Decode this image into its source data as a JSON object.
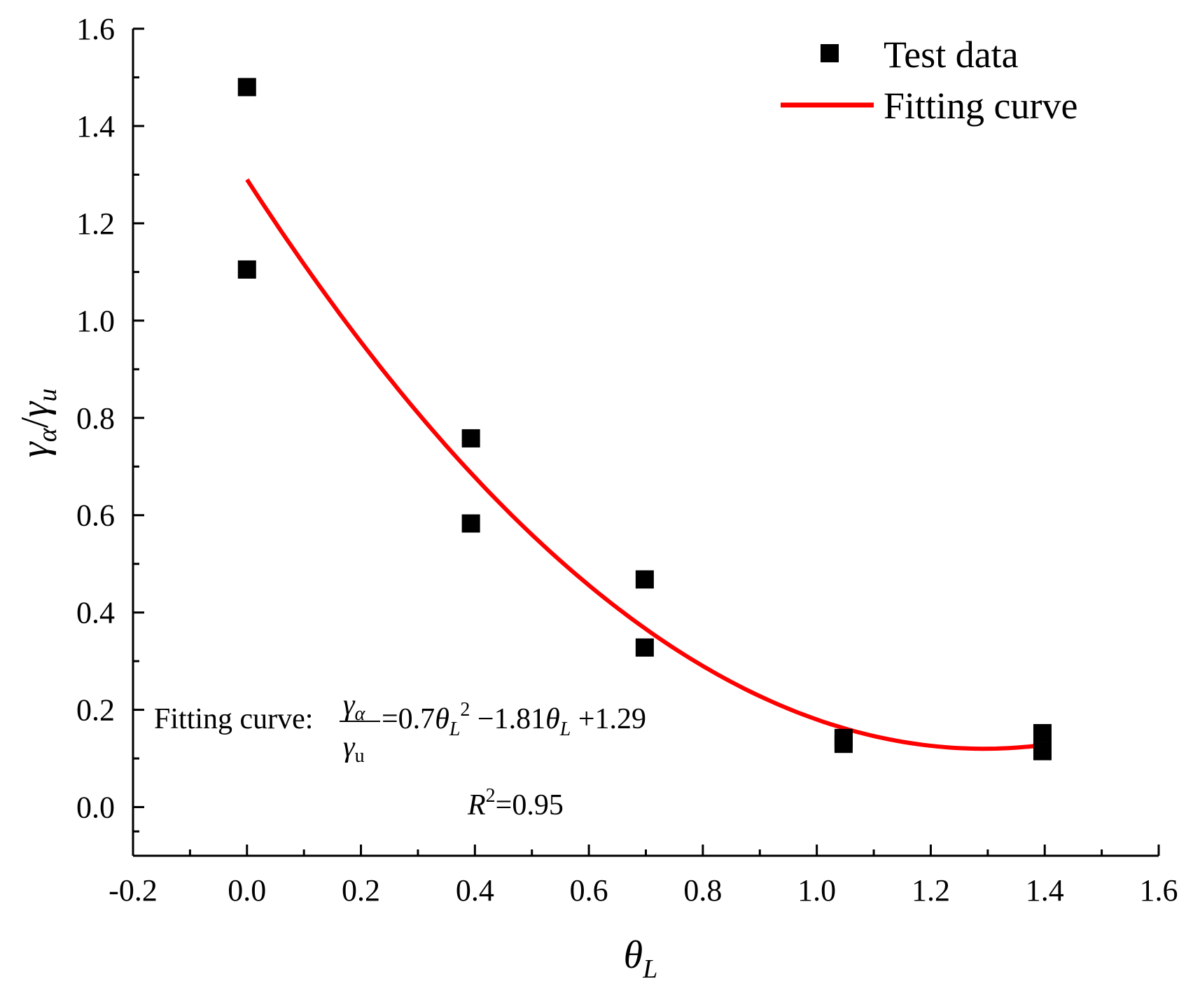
{
  "chart_data": {
    "type": "scatter",
    "xlabel": {
      "base": "θ",
      "sub": "L"
    },
    "ylabel": {
      "num": "γ",
      "num_sub": "α",
      "slash": "/",
      "den": "γ",
      "den_sub": "u"
    },
    "xlim": [
      -0.2,
      1.6
    ],
    "ylim": [
      -0.1,
      1.6
    ],
    "x_ticks": [
      -0.2,
      0.0,
      0.2,
      0.4,
      0.6,
      0.8,
      1.0,
      1.2,
      1.4,
      1.6
    ],
    "x_tick_labels": [
      "-0.2",
      "0.0",
      "0.2",
      "0.4",
      "0.6",
      "0.8",
      "1.0",
      "1.2",
      "1.4",
      "1.6"
    ],
    "y_ticks": [
      0.0,
      0.2,
      0.4,
      0.6,
      0.8,
      1.0,
      1.2,
      1.4,
      1.6
    ],
    "y_tick_labels": [
      "0.0",
      "0.2",
      "0.4",
      "0.6",
      "0.8",
      "1.0",
      "1.2",
      "1.4",
      "1.6"
    ],
    "grid": false,
    "legend_position": "top-right",
    "series": [
      {
        "name": "Test data",
        "kind": "scatter",
        "marker": "square",
        "color": "#000000",
        "points": [
          {
            "x": 0.0,
            "y": 1.48
          },
          {
            "x": 0.0,
            "y": 1.105
          },
          {
            "x": 0.393,
            "y": 0.758
          },
          {
            "x": 0.393,
            "y": 0.583
          },
          {
            "x": 0.698,
            "y": 0.468
          },
          {
            "x": 0.698,
            "y": 0.328
          },
          {
            "x": 1.047,
            "y": 0.142
          },
          {
            "x": 1.047,
            "y": 0.13
          },
          {
            "x": 1.396,
            "y": 0.152
          },
          {
            "x": 1.396,
            "y": 0.115
          }
        ]
      },
      {
        "name": "Fitting curve",
        "kind": "line",
        "color": "#ff0000",
        "x_range": [
          0.0,
          1.396
        ],
        "coefficients": {
          "a": 0.7,
          "b": -1.81,
          "c": 1.29
        }
      }
    ],
    "annotations": {
      "equation_prefix": "Fitting curve:",
      "frac_num": "γ",
      "frac_num_sub": "α",
      "frac_den": "γ",
      "frac_den_sub": "u",
      "eq_sign_coef": "=0.7",
      "theta": "θ",
      "theta_sub": "L",
      "squared": "2",
      "middle_term": " −1.81",
      "last_term": " +1.29",
      "r2_label": "R",
      "r2_sup": "2",
      "r2_value": "=0.95"
    }
  }
}
